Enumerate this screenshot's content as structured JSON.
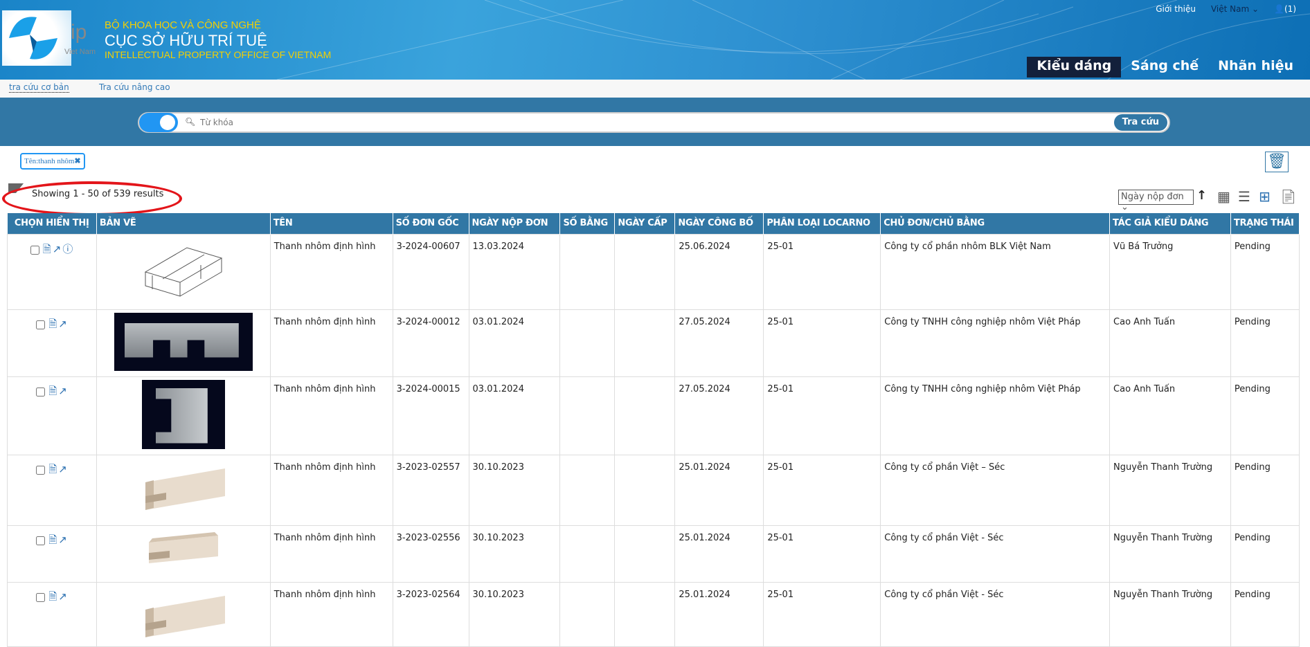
{
  "header": {
    "ministry": "BỘ KHOA HỌC VÀ CÔNG NGHỆ",
    "office": "CỤC SỞ HỮU TRÍ TUỆ",
    "office_en": "INTELLECTUAL PROPERTY OFFICE OF VIETNAM",
    "logo_ip": "ip",
    "logo_vn": "Viet Nam",
    "about": "Giới thiệu",
    "language": "Việt Nam",
    "user": "(1)",
    "nav": [
      "Kiểu dáng",
      "Sáng chế",
      "Nhãn hiệu"
    ],
    "active_nav": "Kiểu dáng"
  },
  "subnav": {
    "basic": "tra cứu cơ bản",
    "advanced": "Tra cứu nâng cao"
  },
  "search": {
    "placeholder": "Từ khóa",
    "button": "Tra cứu"
  },
  "filter_chip": "Tên:thanh nhôm",
  "results_text": "Showing 1 - 50 of 539 results",
  "sort": {
    "selected": "Ngày nộp đơn",
    "direction": "ascending"
  },
  "colors": {
    "header_blue": "#3177a5",
    "accent": "#2196f3",
    "highlight_circle": "#e3151a"
  },
  "table": {
    "columns": [
      "CHỌN HIỂN THỊ",
      "BẢN VẼ",
      "TÊN",
      "SỐ ĐƠN GỐC",
      "NGÀY NỘP ĐƠN",
      "SỐ BẰNG",
      "NGÀY CẤP",
      "NGÀY CÔNG BỐ",
      "PHÂN LOẠI LOCARNO",
      "CHỦ ĐƠN/CHỦ BẰNG",
      "TÁC GIẢ KIỂU DÁNG",
      "TRẠNG THÁI"
    ],
    "rows": [
      {
        "name": "Thanh nhôm định hình",
        "app_no": "3-2024-00607",
        "filing": "13.03.2024",
        "patent": "",
        "grant": "",
        "pub": "25.06.2024",
        "locarno": "25-01",
        "owner": "Công ty cổ phần nhôm BLK Việt Nam",
        "author": "Vũ Bá Trưởng",
        "status": "Pending",
        "info": true,
        "image": "line-drawing"
      },
      {
        "name": "Thanh nhôm định hình",
        "app_no": "3-2024-00012",
        "filing": "03.01.2024",
        "patent": "",
        "grant": "",
        "pub": "27.05.2024",
        "locarno": "25-01",
        "owner": "Công ty TNHH công nghiệp nhôm Việt Pháp",
        "author": "Cao Anh Tuấn",
        "status": "Pending",
        "info": false,
        "image": "dark-photo-wide"
      },
      {
        "name": "Thanh nhôm định hình",
        "app_no": "3-2024-00015",
        "filing": "03.01.2024",
        "patent": "",
        "grant": "",
        "pub": "27.05.2024",
        "locarno": "25-01",
        "owner": "Công ty TNHH công nghiệp nhôm Việt Pháp",
        "author": "Cao Anh Tuấn",
        "status": "Pending",
        "info": false,
        "image": "dark-photo"
      },
      {
        "name": "Thanh nhôm định hình",
        "app_no": "3-2023-02557",
        "filing": "30.10.2023",
        "patent": "",
        "grant": "",
        "pub": "25.01.2024",
        "locarno": "25-01",
        "owner": "Công ty cổ phần Việt – Séc",
        "author": "Nguyễn Thanh Trường",
        "status": "Pending",
        "info": false,
        "image": "beige"
      },
      {
        "name": "Thanh nhôm định hình",
        "app_no": "3-2023-02556",
        "filing": "30.10.2023",
        "patent": "",
        "grant": "",
        "pub": "25.01.2024",
        "locarno": "25-01",
        "owner": "Công ty cổ phần Việt - Séc",
        "author": "Nguyễn Thanh Trường",
        "status": "Pending",
        "info": false,
        "image": "beige-small"
      },
      {
        "name": "Thanh nhôm định hình",
        "app_no": "3-2023-02564",
        "filing": "30.10.2023",
        "patent": "",
        "grant": "",
        "pub": "25.01.2024",
        "locarno": "25-01",
        "owner": "Công ty cổ phần Việt - Séc",
        "author": "Nguyễn Thanh Trường",
        "status": "Pending",
        "info": false,
        "image": "beige"
      }
    ]
  }
}
